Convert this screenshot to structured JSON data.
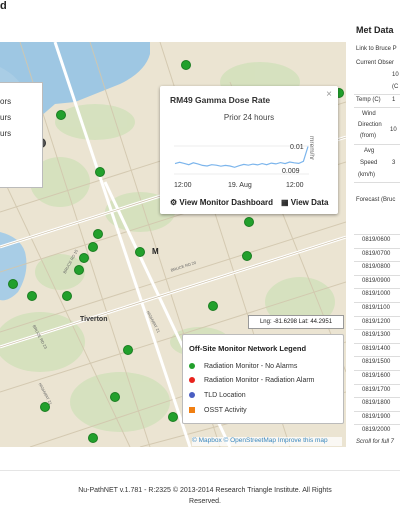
{
  "header": {
    "title_fragment": "d"
  },
  "map": {
    "left_legend_lines": [
      "ors",
      "urs",
      "urs"
    ],
    "popup": {
      "title": "RM49 Gamma Dose Rate",
      "subtitle": "Prior 24 hours",
      "unit": "mrem/hr",
      "y_top": "0.01",
      "y_bottom": "0.009",
      "x_labels": [
        "12:00",
        "19. Aug",
        "12:00"
      ],
      "dashboard_link": "View Monitor Dashboard",
      "data_link": "View Data",
      "close": "×"
    },
    "coords": "Lng: -81.6298 Lat: 44.2951",
    "labels": {
      "tiverton": "Tiverton",
      "m_label": "M"
    },
    "road_labels": [
      "BRUCE RD 20",
      "BRUCE RD 23",
      "HIGHWAY 21",
      "BRUCE RD 15",
      "HIGHWAY 21"
    ],
    "attribution": "© Mapbox © OpenStreetMap Improve this map"
  },
  "legend": {
    "title": "Off-Site Monitor Network Legend",
    "items": [
      {
        "label": "Radiation Monitor - No Alarms",
        "color": "#22a02c"
      },
      {
        "label": "Radiation Monitor - Radiation Alarm",
        "color": "#e8231d"
      },
      {
        "label": "TLD Location",
        "color": "#4a5ec2"
      },
      {
        "label": "OSST Activity",
        "color": "#f07f13"
      }
    ]
  },
  "chart_data": {
    "type": "line",
    "x_ticks": [
      "12:00",
      "19. Aug",
      "12:00"
    ],
    "ylabel": "mrem/hr",
    "y_ticks": [
      0.009,
      0.01
    ],
    "ylim": [
      0.0088,
      0.0101
    ],
    "series": [
      {
        "values": [
          0.00935,
          0.0094,
          0.00936,
          0.00931,
          0.00938,
          0.00934,
          0.00928,
          0.00926,
          0.00931,
          0.00929,
          0.00925,
          0.00928,
          0.00926,
          0.00921,
          0.00927,
          0.00932,
          0.00929,
          0.00933,
          0.0093,
          0.00935,
          0.00931,
          0.00937,
          0.00934,
          0.00939,
          0.00935,
          0.00941,
          0.00938,
          0.00936,
          0.00944,
          0.01
        ]
      }
    ]
  },
  "met": {
    "title": "Met Data",
    "link_text": "Link to Bruce P",
    "current_obs": "Current Obser",
    "val_10": "10",
    "val_c": "(C",
    "temp_label": "Temp (C)",
    "temp_val": "1",
    "wind_label": [
      "Wind",
      "Direction",
      "(from)"
    ],
    "wind_val": "10",
    "speed_label": [
      "Avg",
      "Speed",
      "(km/h)"
    ],
    "speed_val": "3",
    "forecast": "Forecast (Bruc",
    "times": [
      "0819/0600",
      "0819/0700",
      "0819/0800",
      "0819/0900",
      "0819/1000",
      "0819/1100",
      "0819/1200",
      "0819/1300",
      "0819/1400",
      "0819/1500",
      "0819/1600",
      "0819/1700",
      "0819/1800",
      "0819/1900",
      "0819/2000"
    ],
    "scroll_note": "Scroll for full 7"
  },
  "footer": {
    "line1": "Nu-PathNET v.1.781 - R:2325 © 2013-2014 Research Triangle Institute. All Rights",
    "line2": "Reserved."
  }
}
